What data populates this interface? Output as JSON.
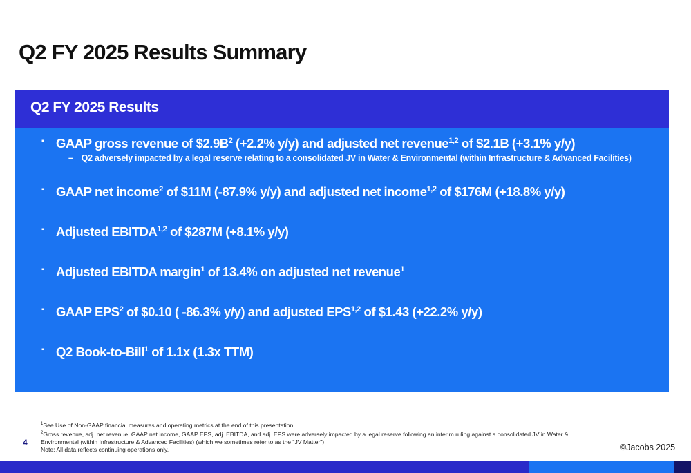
{
  "header": {
    "title": "Q2 FY 2025 Results Summary"
  },
  "panel": {
    "title": "Q2 FY 2025 Results",
    "bullets": [
      {
        "parts": [
          {
            "text": "GAAP gross revenue of $2.9B",
            "sup": "2"
          },
          {
            "text": " (+2.2% y/y) and adjusted net revenue",
            "sup": "1,2"
          },
          {
            "text": " of $2.1B (+3.1% y/y)"
          }
        ],
        "sub": "Q2 adversely impacted by a legal reserve relating to a consolidated JV in Water & Environmental (within Infrastructure & Advanced Facilities)"
      },
      {
        "parts": [
          {
            "text": "GAAP net income",
            "sup": "2"
          },
          {
            "text": " of $11M (-87.9% y/y) and adjusted net income",
            "sup": "1,2"
          },
          {
            "text": " of $176M (+18.8% y/y)"
          }
        ]
      },
      {
        "parts": [
          {
            "text": "Adjusted EBITDA",
            "sup": "1,2"
          },
          {
            "text": " of  $287M (+8.1% y/y)"
          }
        ]
      },
      {
        "parts": [
          {
            "text": "Adjusted EBITDA margin",
            "sup": "1"
          },
          {
            "text": " of 13.4% on adjusted net revenue",
            "sup": "1"
          }
        ]
      },
      {
        "parts": [
          {
            "text": "GAAP EPS",
            "sup": "2"
          },
          {
            "text": " of $0.10 ( -86.3% y/y) and adjusted EPS",
            "sup": "1,2"
          },
          {
            "text": " of  $1.43 (+22.2% y/y)"
          }
        ]
      },
      {
        "parts": [
          {
            "text": "Q2 Book-to-Bill",
            "sup": "1"
          },
          {
            "text": " of 1.1x (1.3x TTM)"
          }
        ]
      }
    ]
  },
  "footnotes": [
    {
      "mark": "1",
      "text": "See Use of Non-GAAP financial measures and operating metrics at the end of this presentation."
    },
    {
      "mark": "2",
      "text": "Gross revenue, adj. net revenue, GAAP net income, GAAP EPS, adj. EBITDA, and adj. EPS were adversely impacted by a legal reserve following an interim ruling against a consolidated JV in Water & Environmental (within Infrastructure & Advanced Facilities) (which we sometimes refer to as the \"JV Matter\")"
    },
    {
      "text": "Note: All data reflects continuing operations only."
    }
  ],
  "footer": {
    "page": "4",
    "copyright": "©Jacobs 2025"
  }
}
